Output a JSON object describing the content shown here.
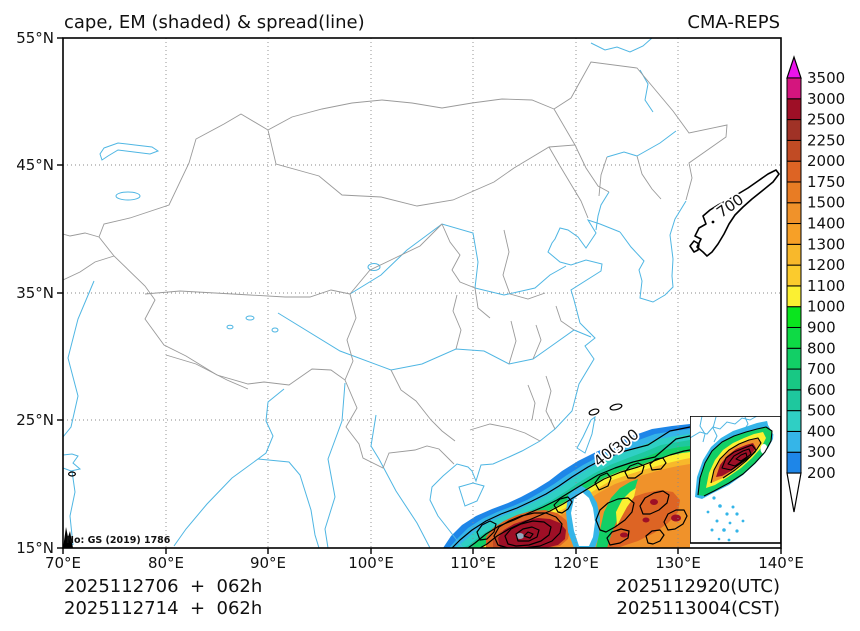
{
  "header": {
    "title": "cape, EM (shaded) & spread(line)",
    "model": "CMA-REPS"
  },
  "axes": {
    "x_ticks": [
      "70°E",
      "80°E",
      "90°E",
      "100°E",
      "110°E",
      "120°E",
      "130°E",
      "140°E"
    ],
    "y_ticks": [
      "55°N",
      "45°N",
      "35°N",
      "25°N",
      "15°N"
    ]
  },
  "colorbar": {
    "levels": [
      200,
      300,
      400,
      500,
      600,
      700,
      800,
      900,
      1000,
      1100,
      1200,
      1300,
      1400,
      1500,
      1750,
      2000,
      2250,
      2500,
      3000,
      3500
    ],
    "segment_colors": [
      "#1E86E8",
      "#35B5E8",
      "#2FCFC4",
      "#1EC89E",
      "#18C884",
      "#12CF66",
      "#0EDA45",
      "#0AE51E",
      "#FBF032",
      "#FBCB2D",
      "#F8B82B",
      "#F7A027",
      "#F0922A",
      "#E87C24",
      "#DD6424",
      "#C14B24",
      "#A03226",
      "#9E0F26",
      "#D4157E"
    ],
    "over_color": "#EB13EB",
    "under_color": "#FFFFFF"
  },
  "contour_labels": {
    "edge_outer": "300",
    "edge_inner": "400",
    "japan": "700"
  },
  "footer": {
    "init_line1": "2025112706  +  062h",
    "init_line2": "2025112714  +  062h",
    "valid_utc": "2025112920(UTC)",
    "valid_cst": "2025113004(CST)"
  },
  "watermark": "No: GS (2019) 1786",
  "chart_data": {
    "type": "heatmap",
    "title": "cape, EM (shaded) & spread(line)",
    "source_model": "CMA-REPS",
    "x_axis": {
      "label": "longitude",
      "range_deg_e": [
        70,
        140
      ],
      "ticks": [
        "70°E",
        "80°E",
        "90°E",
        "100°E",
        "110°E",
        "120°E",
        "130°E",
        "140°E"
      ]
    },
    "y_axis": {
      "label": "latitude",
      "range_deg_n": [
        15,
        55
      ],
      "ticks": [
        "15°N",
        "25°N",
        "35°N",
        "45°N",
        "55°N"
      ]
    },
    "grid": "10-degree dotted graticule, on",
    "legend_position": "right colorbar with over/under arrows",
    "shaded_field": {
      "name": "CAPE ensemble mean",
      "units": "J/kg",
      "levels": [
        200,
        300,
        400,
        500,
        600,
        700,
        800,
        900,
        1000,
        1100,
        1200,
        1300,
        1400,
        1500,
        1750,
        2000,
        2250,
        2500,
        3000,
        3500
      ],
      "palette": [
        "#1E86E8",
        "#35B5E8",
        "#2FCFC4",
        "#1EC89E",
        "#18C884",
        "#12CF66",
        "#0EDA45",
        "#0AE51E",
        "#FBF032",
        "#FBCB2D",
        "#F8B82B",
        "#F7A027",
        "#F0922A",
        "#E87C24",
        "#DD6424",
        "#C14B24",
        "#A03226",
        "#9E0F26",
        "#D4157E"
      ],
      "over_color": "#EB13EB",
      "under_color": "#FFFFFF",
      "coverage": "southeast corner of domain over the South China Sea and western Pacific, roughly south of 23N and east of 107E; rest of map below 200 (white)",
      "maxima": [
        {
          "lon_e": 113.5,
          "lat_n": 16,
          "value_jkg": "2500-3000+"
        },
        {
          "lon_e": 121,
          "lat_n": 17,
          "value_jkg": "1750-2500 with embedded >2500 cores"
        }
      ]
    },
    "contour_field": {
      "name": "ensemble spread",
      "labeled_values": [
        300,
        400,
        700
      ],
      "notes": "smooth spread contours labeled 300 and 400 along the northwest edge of the CAPE area southeast of Taiwan; closed contour labeled 700 near Japan around 133-140E, 38-43N; many small noisy closed contours over the high-CAPE region"
    },
    "inset": {
      "position": "lower right",
      "content": "zoom panel of South China Sea islands with same CAPE shading and spread contours, scattered island dots"
    },
    "init_times": [
      "2025112706 + 062h",
      "2025112714 + 062h"
    ],
    "valid_times": [
      "2025112920(UTC)",
      "2025113004(CST)"
    ]
  }
}
